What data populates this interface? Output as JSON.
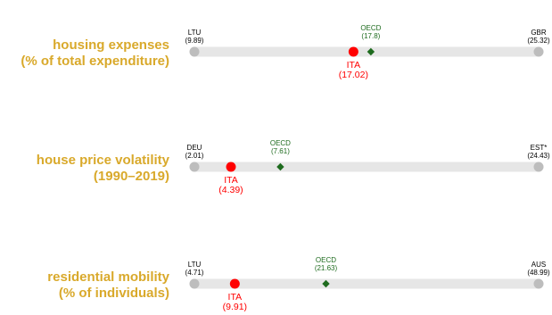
{
  "colors": {
    "indicator_label": "#D9A92B",
    "track": "#E6E6E6",
    "endpoint_dot": "#BDBDBD",
    "ita": "#FF0000",
    "oecd": "#1E6B1E",
    "endpoint_text": "#000000"
  },
  "chart_data": [
    {
      "type": "scatter",
      "label_lines": [
        "housing expenses",
        "(% of total expenditure)"
      ],
      "min": {
        "country": "LTU",
        "value": 9.89,
        "value_label": "(9.89)"
      },
      "max": {
        "country": "GBR",
        "value": 25.32,
        "value_label": "(25.32)"
      },
      "oecd": {
        "label": "OECD",
        "value": 17.8,
        "value_label": "(17.8)"
      },
      "ita": {
        "label": "ITA",
        "value": 17.02,
        "value_label": "(17.02)"
      }
    },
    {
      "type": "scatter",
      "label_lines": [
        "house price volatility",
        "(1990–2019)"
      ],
      "min": {
        "country": "DEU",
        "value": 2.01,
        "value_label": "(2.01)"
      },
      "max": {
        "country": "EST*",
        "value": 24.43,
        "value_label": "(24.43)"
      },
      "oecd": {
        "label": "OECD",
        "value": 7.61,
        "value_label": "(7.61)"
      },
      "ita": {
        "label": "ITA",
        "value": 4.39,
        "value_label": "(4.39)"
      }
    },
    {
      "type": "scatter",
      "label_lines": [
        "residential mobility",
        "(% of individuals)"
      ],
      "min": {
        "country": "LTU",
        "value": 4.71,
        "value_label": "(4.71)"
      },
      "max": {
        "country": "AUS",
        "value": 48.99,
        "value_label": "(48.99)"
      },
      "oecd": {
        "label": "OECD",
        "value": 21.63,
        "value_label": "(21.63)"
      },
      "ita": {
        "label": "ITA",
        "value": 9.91,
        "value_label": "(9.91)"
      }
    }
  ]
}
